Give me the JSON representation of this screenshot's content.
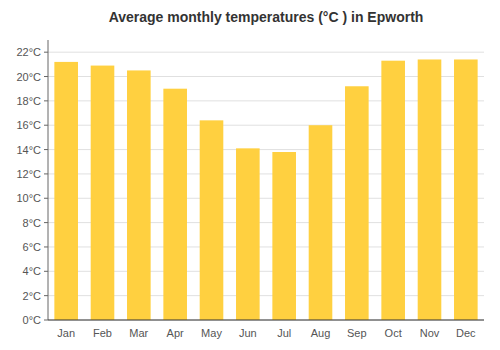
{
  "chart_data": {
    "type": "bar",
    "title": "Average monthly temperatures (°C ) in Epworth",
    "categories": [
      "Jan",
      "Feb",
      "Mar",
      "Apr",
      "May",
      "Jun",
      "Jul",
      "Aug",
      "Sep",
      "Oct",
      "Nov",
      "Dec"
    ],
    "values": [
      21.2,
      20.9,
      20.5,
      19.0,
      16.4,
      14.1,
      13.8,
      16.0,
      19.2,
      21.3,
      21.4,
      21.4
    ],
    "color": "#FFD040",
    "ylim": [
      0,
      23
    ],
    "yticks": [
      {
        "value": 0,
        "label": "0°C"
      },
      {
        "value": 2,
        "label": "2°C"
      },
      {
        "value": 4,
        "label": "4°C"
      },
      {
        "value": 6,
        "label": "6°C"
      },
      {
        "value": 8,
        "label": "8°C"
      },
      {
        "value": 10,
        "label": "10°C"
      },
      {
        "value": 12,
        "label": "12°C"
      },
      {
        "value": 14,
        "label": "14°C"
      },
      {
        "value": 16,
        "label": "16°C"
      },
      {
        "value": 18,
        "label": "18°C"
      },
      {
        "value": 20,
        "label": "20°C"
      },
      {
        "value": 22,
        "label": "22°C"
      }
    ],
    "grid": true
  }
}
